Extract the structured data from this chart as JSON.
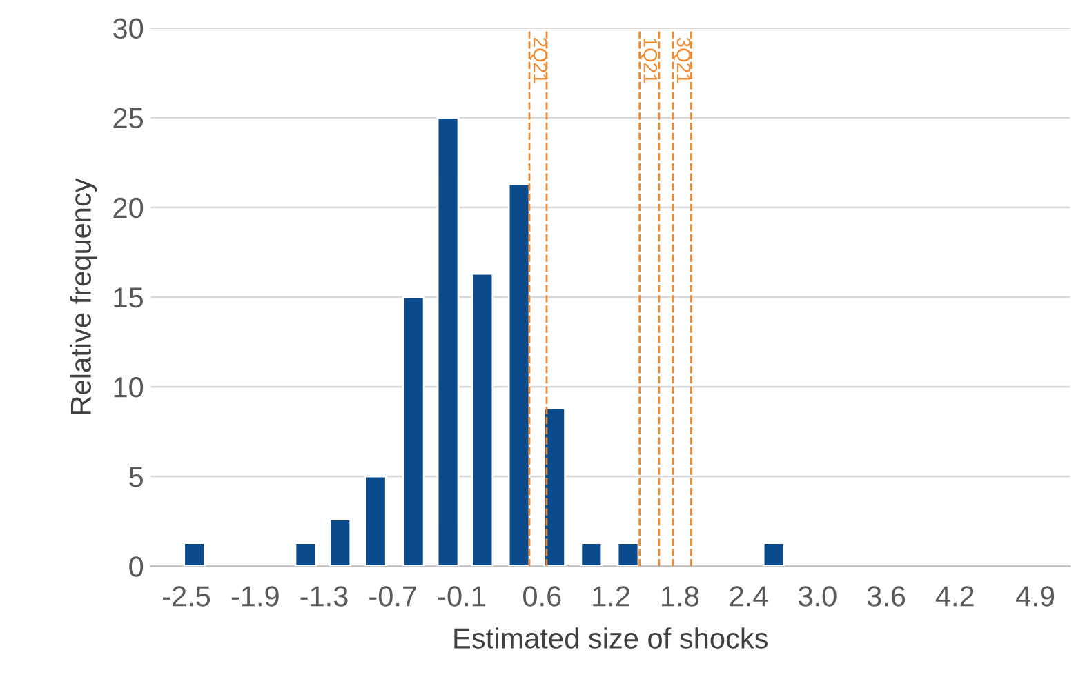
{
  "chart_data": {
    "type": "bar",
    "xlabel": "Estimated size of shocks",
    "ylabel": "Relative frequency",
    "x": [
      -2.43,
      -1.46,
      -1.16,
      -0.85,
      -0.52,
      -0.22,
      0.08,
      0.4,
      0.71,
      1.03,
      1.35,
      2.62
    ],
    "values": [
      1.3,
      1.3,
      2.6,
      5,
      15,
      25,
      16.3,
      21.3,
      8.8,
      1.3,
      1.3,
      1.3
    ],
    "color": "#0b4a8b",
    "xlim": [
      -2.81,
      5.2
    ],
    "xticks": [
      -2.5,
      -1.9,
      -1.3,
      -0.7,
      -0.1,
      0.6,
      1.2,
      1.8,
      2.4,
      {
        "value": 3.0,
        "label": "3.0"
      },
      3.6,
      4.2,
      4.9
    ],
    "ylim": [
      0,
      30
    ],
    "yticks": [
      0,
      5,
      10,
      15,
      20,
      25,
      30
    ],
    "grid": "y",
    "ref_lines": [
      {
        "axis": "x",
        "value": 0.49,
        "label": "2Q21",
        "color": "#f08a30",
        "line_style": "dashed"
      },
      {
        "axis": "x",
        "value": 0.64,
        "color": "#f08a30",
        "line_style": "dashed"
      },
      {
        "axis": "x",
        "value": 1.45,
        "label": "1Q21",
        "color": "#f08a30",
        "line_style": "dashed"
      },
      {
        "axis": "x",
        "value": 1.62,
        "color": "#f08a30",
        "line_style": "dashed"
      },
      {
        "axis": "x",
        "value": 1.74,
        "label": "3Q21",
        "color": "#f08a30",
        "line_style": "dashed"
      },
      {
        "axis": "x",
        "value": 1.9,
        "color": "#f08a30",
        "line_style": "dashed"
      }
    ]
  }
}
